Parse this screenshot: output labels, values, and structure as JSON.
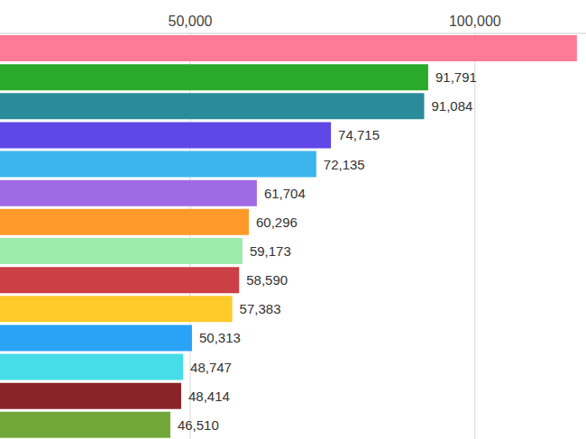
{
  "chart_data": {
    "type": "bar",
    "orientation": "horizontal",
    "categories": [
      null,
      null,
      null,
      null,
      null,
      null,
      null,
      null,
      null,
      null,
      null,
      null,
      null,
      null
    ],
    "values": [
      117900,
      91791,
      91084,
      74715,
      72135,
      61704,
      60296,
      59173,
      58590,
      57383,
      50313,
      48747,
      48414,
      46510
    ],
    "value_labels": [
      null,
      "91,791",
      "91,084",
      "74,715",
      "72,135",
      "61,704",
      "60,296",
      "59,173",
      "58,590",
      "57,383",
      "50,313",
      "48,747",
      "48,414",
      "46,510"
    ],
    "colors": [
      "#ff7a96",
      "#2aaa2a",
      "#2a8c9a",
      "#5f47e8",
      "#3bb4ee",
      "#a06ae4",
      "#ff9a2a",
      "#9cebaa",
      "#cc3f44",
      "#ffcb2a",
      "#2aa2f5",
      "#46dde8",
      "#8a2428",
      "#72a838"
    ],
    "xlim": [
      16600,
      119500
    ],
    "xticks": [
      {
        "value": 50000,
        "label": "50,000"
      },
      {
        "value": 100000,
        "label": "100,000"
      }
    ],
    "grid": true,
    "data_labels": true,
    "tick_labels": "x"
  }
}
